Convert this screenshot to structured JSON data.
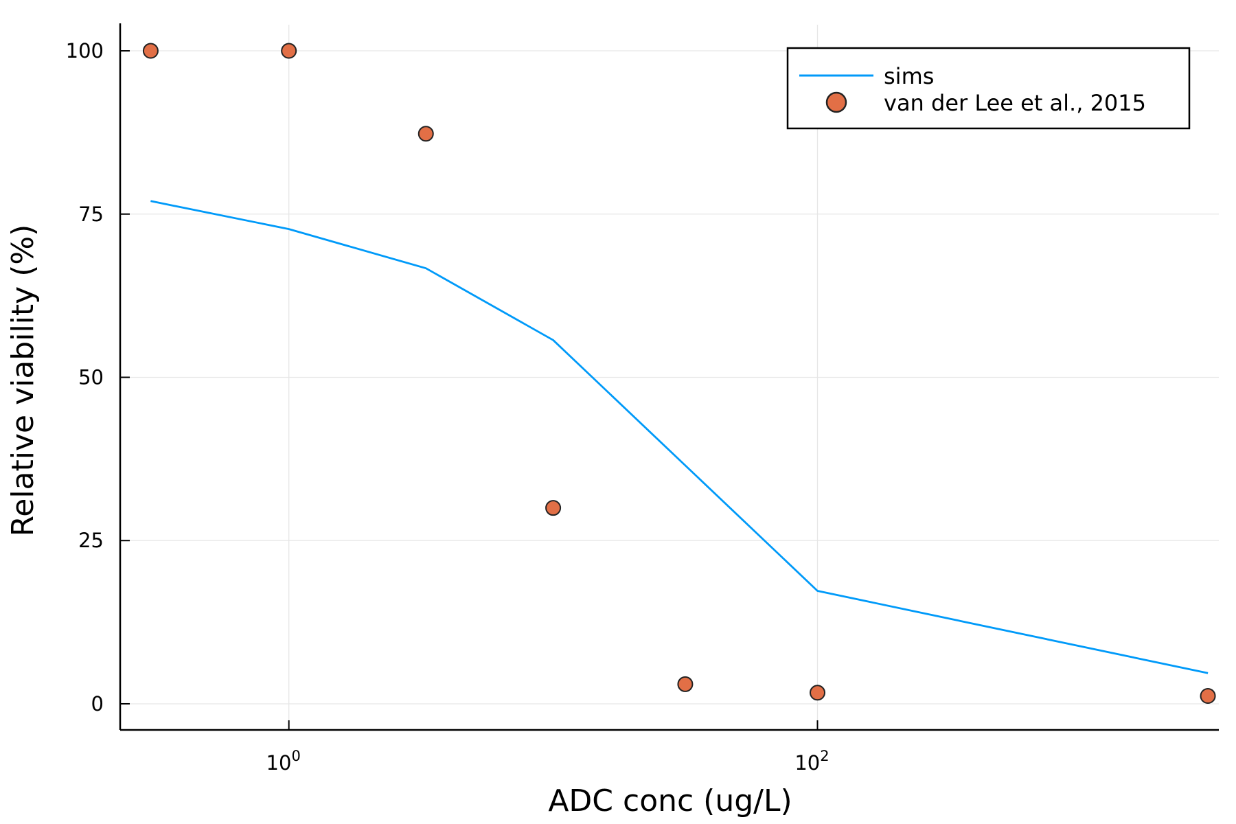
{
  "chart_data": {
    "type": "scatter",
    "title": "",
    "xlabel": "ADC conc (ug/L)",
    "ylabel": "Relative viability (%)",
    "xscale": "log10",
    "xlim": [
      0.23,
      3300
    ],
    "ylim": [
      -4,
      104
    ],
    "grid": true,
    "legend_position": "top-right",
    "x_ticks": [
      {
        "value": 1,
        "base": "10",
        "exp": "0"
      },
      {
        "value": 100,
        "base": "10",
        "exp": "2"
      }
    ],
    "y_ticks": [
      {
        "value": 0,
        "label": "0"
      },
      {
        "value": 25,
        "label": "25"
      },
      {
        "value": 50,
        "label": "50"
      },
      {
        "value": 75,
        "label": "75"
      },
      {
        "value": 100,
        "label": "100"
      }
    ],
    "series": [
      {
        "name": "sims",
        "kind": "line",
        "color": "#009af9",
        "x": [
          0.3,
          1.0,
          3.3,
          10.0,
          100.0,
          3000.0
        ],
        "y": [
          77,
          72.7,
          66.7,
          55.7,
          17.3,
          4.7
        ]
      },
      {
        "name": "van der Lee et al., 2015",
        "kind": "scatter",
        "color": "#e26f46",
        "x": [
          0.3,
          1.0,
          3.3,
          10.0,
          31.6,
          100.0,
          3000.0
        ],
        "y": [
          100,
          100,
          87.3,
          30.0,
          3.0,
          1.7,
          1.2
        ]
      }
    ]
  }
}
